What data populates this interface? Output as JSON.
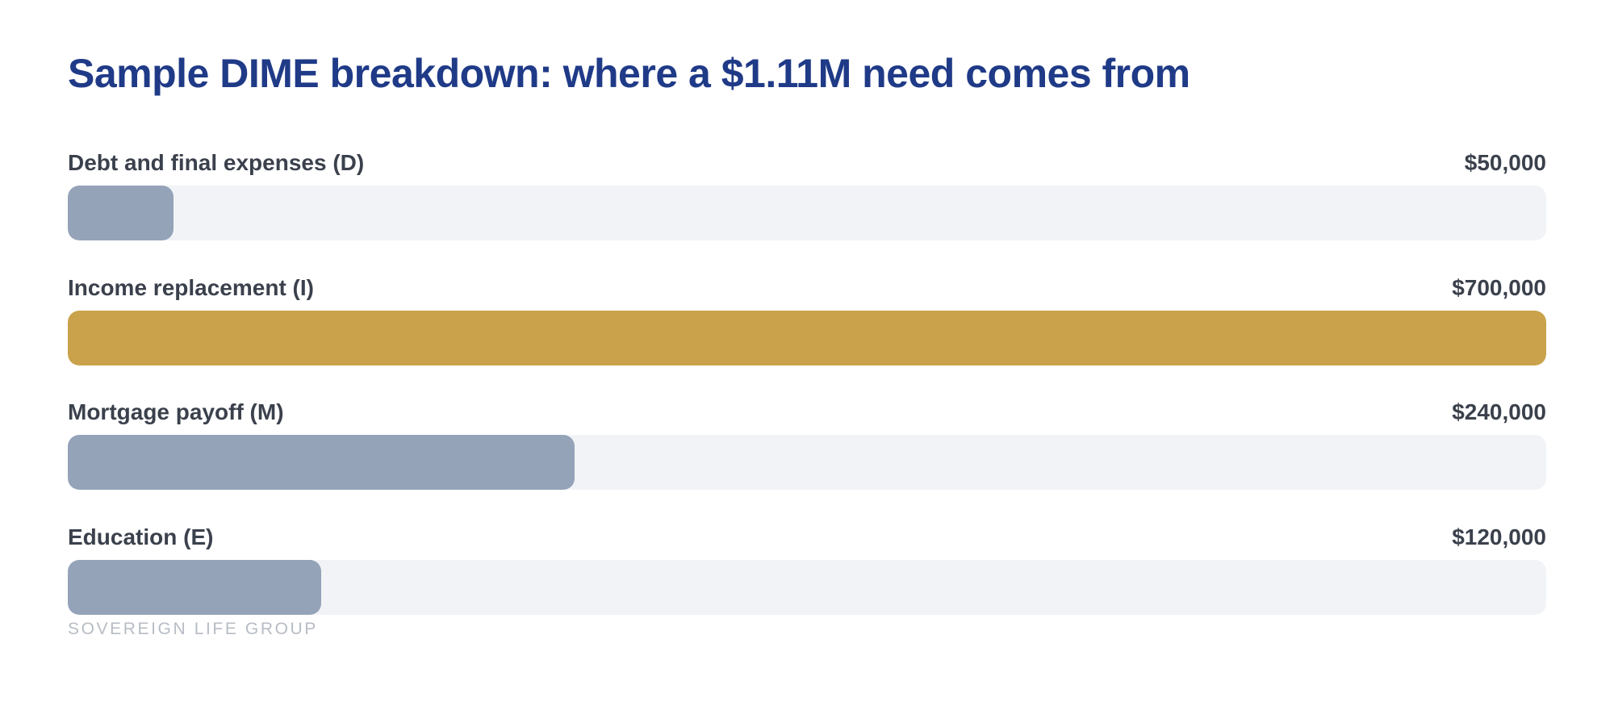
{
  "chart_data": {
    "type": "bar",
    "orientation": "horizontal",
    "title": "Sample DIME breakdown: where a $1.11M need comes from",
    "categories": [
      "Debt and final expenses (D)",
      "Income replacement (I)",
      "Mortgage payoff (M)",
      "Education (E)"
    ],
    "values": [
      50000,
      700000,
      240000,
      120000
    ],
    "value_labels": [
      "$50,000",
      "$700,000",
      "$240,000",
      "$120,000"
    ],
    "xlim": [
      0,
      700000
    ],
    "highlight_index": 1,
    "colors": {
      "default_bar": "#94a3b8",
      "highlight_bar": "#c9a24b",
      "track": "#f1f3f6",
      "title": "#1f3a87",
      "label": "#3b414c"
    },
    "grid": false,
    "legend": "none"
  },
  "footer": {
    "brand": "SOVEREIGN LIFE GROUP"
  }
}
